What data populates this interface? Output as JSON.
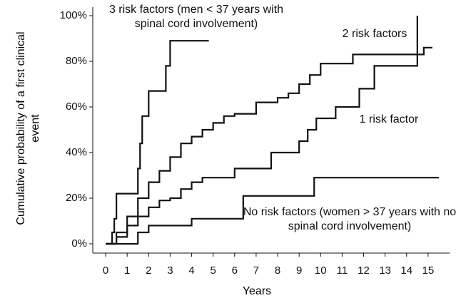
{
  "chart_data": {
    "type": "step",
    "xlabel": "Years",
    "ylabel": "Cumulative probability of a first clinical event",
    "xlim": [
      -0.6,
      16
    ],
    "ylim": [
      0,
      100
    ],
    "xticks": [
      0,
      1,
      2,
      3,
      4,
      5,
      6,
      7,
      8,
      9,
      10,
      11,
      12,
      13,
      14,
      15
    ],
    "yticks": [
      {
        "value": 0,
        "label": "0%"
      },
      {
        "value": 20,
        "label": "20%"
      },
      {
        "value": 40,
        "label": "40%"
      },
      {
        "value": 60,
        "label": "60%"
      },
      {
        "value": 80,
        "label": "80%"
      },
      {
        "value": 100,
        "label": "100%"
      }
    ],
    "series": [
      {
        "name": "3 risk factors (men < 37 years with spinal cord involvement)",
        "color": "#111111",
        "x": [
          0,
          0.3,
          0.4,
          0.5,
          1.5,
          1.6,
          1.7,
          2.0,
          2.8,
          3.0,
          4.8
        ],
        "values": [
          0,
          5,
          11,
          22,
          33,
          44,
          56,
          67,
          78,
          89,
          89
        ]
      },
      {
        "name": "2 risk factors",
        "color": "#111111",
        "x": [
          0,
          0.5,
          1,
          1.5,
          2,
          2.5,
          3,
          3.5,
          4,
          4.5,
          5,
          5.5,
          6,
          7,
          8,
          8.5,
          9,
          9.5,
          10,
          11.5,
          14.8,
          15.2
        ],
        "values": [
          0,
          5,
          12,
          20,
          27,
          32,
          38,
          44,
          47,
          50,
          53,
          56,
          57,
          62,
          64,
          66,
          70,
          74,
          79,
          83,
          86,
          86
        ]
      },
      {
        "name": "1 risk factor",
        "color": "#111111",
        "x": [
          0,
          0.5,
          1,
          1.5,
          2,
          2.5,
          3,
          3.5,
          4,
          4.5,
          6,
          7.7,
          9,
          9.4,
          9.8,
          10.7,
          11.8,
          12.5,
          14.5
        ],
        "values": [
          0,
          3,
          8,
          12,
          16,
          19,
          20,
          24,
          27,
          29,
          33,
          40,
          45,
          50,
          55,
          60,
          68,
          78,
          100
        ]
      },
      {
        "name": "No risk factors (women > 37 years with no spinal cord involvement)",
        "color": "#111111",
        "x": [
          0,
          1.0,
          1.5,
          2,
          4,
          5.5,
          6.4,
          9.7,
          15.5
        ],
        "values": [
          0,
          0,
          5,
          8,
          11,
          11,
          21,
          29,
          29
        ]
      }
    ]
  }
}
